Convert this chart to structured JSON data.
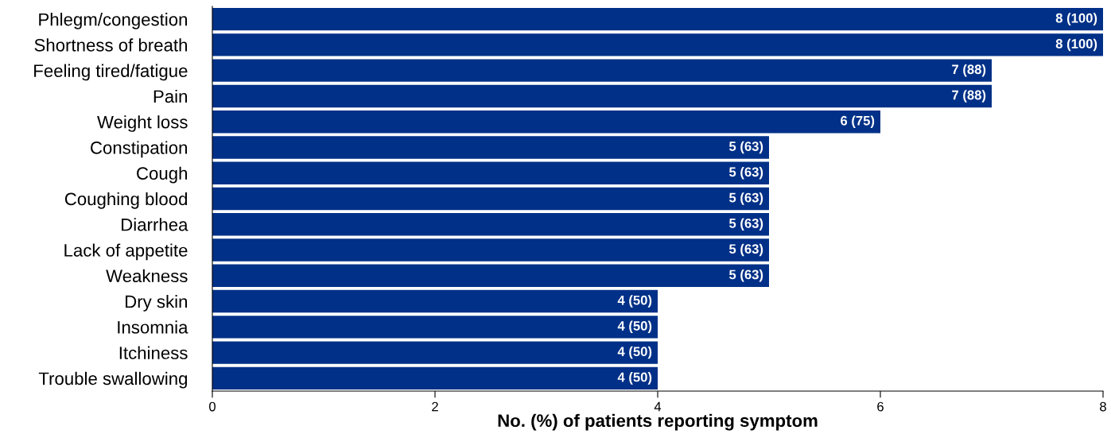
{
  "chart_data": {
    "type": "bar",
    "orientation": "horizontal",
    "xlabel": "No. (%) of patients reporting symptom",
    "categories": [
      "Phlegm/congestion",
      "Shortness of breath",
      "Feeling tired/fatigue",
      "Pain",
      "Weight loss",
      "Constipation",
      "Cough",
      "Coughing blood",
      "Diarrhea",
      "Lack of appetite",
      "Weakness",
      "Dry skin",
      "Insomnia",
      "Itchiness",
      "Trouble swallowing"
    ],
    "values": [
      8,
      8,
      7,
      7,
      6,
      5,
      5,
      5,
      5,
      5,
      5,
      4,
      4,
      4,
      4
    ],
    "value_labels": [
      "8 (100)",
      "8 (100)",
      "7 (88)",
      "7 (88)",
      "6 (75)",
      "5 (63)",
      "5 (63)",
      "5 (63)",
      "5 (63)",
      "5 (63)",
      "5 (63)",
      "4 (50)",
      "4 (50)",
      "4 (50)",
      "4 (50)"
    ],
    "color": "#003087",
    "xlim": [
      0,
      8
    ],
    "xticks": [
      0,
      2,
      4,
      6,
      8
    ],
    "grid": false,
    "legend": false
  }
}
